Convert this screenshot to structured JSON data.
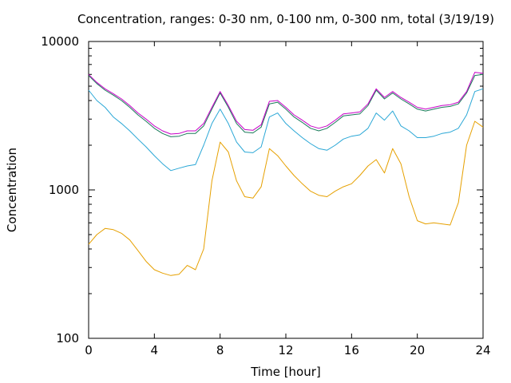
{
  "chart_data": {
    "type": "line",
    "title": "Concentration, ranges: 0-30 nm, 0-100 nm, 0-300 nm, total (3/19/19)",
    "xlabel": "Time [hour]",
    "ylabel": "Concentration",
    "xlim": [
      0,
      24
    ],
    "ylim": [
      100,
      10000
    ],
    "yscale": "log",
    "grid": false,
    "legend": "none",
    "x_ticks": [
      0,
      4,
      8,
      12,
      16,
      20,
      24
    ],
    "x_tick_labels": [
      "0",
      "4",
      "8",
      "12",
      "16",
      "20",
      "24"
    ],
    "y_ticks": [
      100,
      1000,
      10000
    ],
    "y_tick_labels": [
      "100",
      "1000",
      "10000"
    ],
    "x": [
      0,
      0.5,
      1,
      1.5,
      2,
      2.5,
      3,
      3.5,
      4,
      4.5,
      5,
      5.5,
      6,
      6.5,
      7,
      7.5,
      8,
      8.5,
      9,
      9.5,
      10,
      10.5,
      11,
      11.5,
      12,
      12.5,
      13,
      13.5,
      14,
      14.5,
      15,
      15.5,
      16,
      16.5,
      17,
      17.5,
      18,
      18.5,
      19,
      19.5,
      20,
      20.5,
      21,
      21.5,
      22,
      22.5,
      23,
      23.5,
      24
    ],
    "series": [
      {
        "color": "#e6a000",
        "values": [
          430,
          500,
          550,
          540,
          510,
          460,
          390,
          330,
          290,
          275,
          265,
          270,
          310,
          290,
          400,
          1150,
          2100,
          1800,
          1150,
          900,
          880,
          1050,
          1900,
          1700,
          1450,
          1250,
          1100,
          980,
          920,
          900,
          980,
          1050,
          1100,
          1250,
          1450,
          1600,
          1300,
          1900,
          1500,
          900,
          620,
          590,
          600,
          590,
          580,
          820,
          2000,
          2900,
          2650
        ]
      },
      {
        "color": "#2aa7d6",
        "values": [
          4700,
          4000,
          3600,
          3100,
          2800,
          2500,
          2200,
          1950,
          1700,
          1500,
          1350,
          1400,
          1450,
          1480,
          2000,
          2800,
          3500,
          2800,
          2100,
          1800,
          1780,
          1950,
          3100,
          3300,
          2800,
          2500,
          2250,
          2050,
          1900,
          1850,
          2000,
          2200,
          2300,
          2350,
          2600,
          3300,
          2950,
          3400,
          2700,
          2500,
          2250,
          2250,
          2300,
          2400,
          2450,
          2600,
          3200,
          4600,
          4800
        ]
      },
      {
        "color": "#1a7a5a",
        "values": [
          5900,
          5200,
          4700,
          4350,
          4000,
          3600,
          3200,
          2900,
          2600,
          2400,
          2280,
          2300,
          2400,
          2400,
          2700,
          3500,
          4500,
          3600,
          2800,
          2450,
          2420,
          2650,
          3800,
          3900,
          3500,
          3100,
          2850,
          2600,
          2500,
          2600,
          2850,
          3150,
          3200,
          3250,
          3700,
          4700,
          4100,
          4500,
          4100,
          3800,
          3500,
          3400,
          3500,
          3600,
          3650,
          3800,
          4500,
          5900,
          6000
        ]
      },
      {
        "color": "#c800c8",
        "values": [
          6000,
          5300,
          4800,
          4450,
          4100,
          3700,
          3300,
          3000,
          2700,
          2500,
          2380,
          2400,
          2500,
          2500,
          2800,
          3600,
          4600,
          3700,
          2900,
          2550,
          2520,
          2750,
          3950,
          4000,
          3600,
          3200,
          2950,
          2700,
          2600,
          2700,
          2950,
          3250,
          3300,
          3350,
          3800,
          4800,
          4200,
          4600,
          4200,
          3900,
          3600,
          3500,
          3600,
          3700,
          3750,
          3900,
          4600,
          6200,
          6100
        ]
      }
    ]
  }
}
